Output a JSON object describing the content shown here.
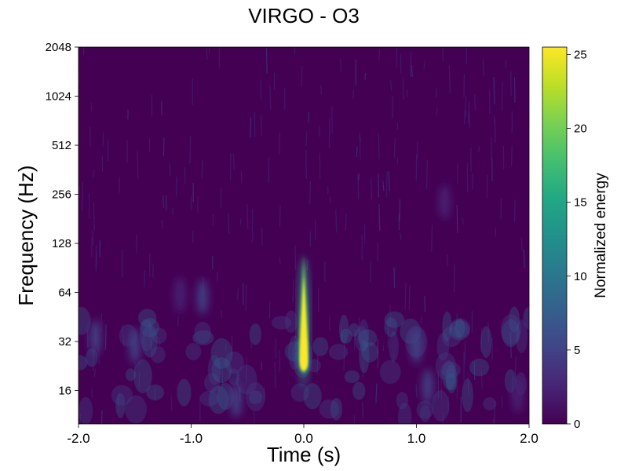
{
  "chart_data": {
    "type": "heatmap",
    "title": "VIRGO - O3",
    "xlabel": "Time (s)",
    "ylabel": "Frequency (Hz)",
    "x_ticks": [
      "-2.0",
      "-1.0",
      "0.0",
      "1.0",
      "2.0"
    ],
    "x_tick_values": [
      -2.0,
      -1.0,
      0.0,
      1.0,
      2.0
    ],
    "xlim": [
      -2.0,
      2.0
    ],
    "y_ticks": [
      "16",
      "32",
      "64",
      "128",
      "256",
      "512",
      "1024",
      "2048"
    ],
    "y_tick_values": [
      16,
      32,
      64,
      128,
      256,
      512,
      1024,
      2048
    ],
    "ylim": [
      10,
      2048
    ],
    "y_scale": "log2",
    "colorbar": {
      "label": "Normalized energy",
      "ticks": [
        "0",
        "5",
        "10",
        "15",
        "20",
        "25"
      ],
      "tick_values": [
        0,
        5,
        10,
        15,
        20,
        25
      ],
      "range": [
        0,
        25.5
      ],
      "colormap": "viridis"
    },
    "features": [
      {
        "kind": "chirp",
        "time": 0.0,
        "freq_low": 20,
        "freq_peak": 24,
        "freq_high": 110,
        "max_energy": 25.5
      },
      {
        "kind": "blob",
        "time": -0.9,
        "freq": 60,
        "energy": 4
      },
      {
        "kind": "blob",
        "time": -1.1,
        "freq": 62,
        "energy": 3.5
      },
      {
        "kind": "blob",
        "time": -1.85,
        "freq": 34,
        "energy": 5
      },
      {
        "kind": "blob",
        "time": -1.5,
        "freq": 30,
        "energy": 4
      },
      {
        "kind": "blob",
        "time": -0.6,
        "freq": 14,
        "energy": 4
      },
      {
        "kind": "blob",
        "time": 1.0,
        "freq": 30,
        "energy": 4
      },
      {
        "kind": "blob",
        "time": 1.1,
        "freq": 17,
        "energy": 4
      },
      {
        "kind": "blob",
        "time": 1.25,
        "freq": 230,
        "energy": 3
      },
      {
        "kind": "blob",
        "time": 1.9,
        "freq": 15,
        "energy": 3
      }
    ],
    "grid": false
  }
}
